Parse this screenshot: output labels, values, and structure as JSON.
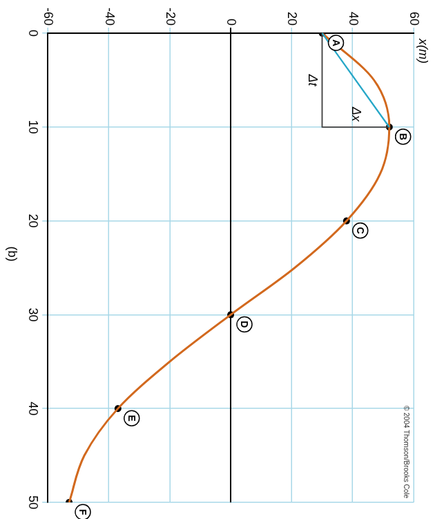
{
  "chart_data": {
    "type": "line",
    "y_label": "x(m)",
    "subtitle": "(b)",
    "x": [
      0,
      5,
      10,
      15,
      20,
      25,
      30,
      35,
      40,
      45,
      50
    ],
    "series": [
      {
        "values": [
          30,
          47,
          52,
          49,
          38,
          21,
          0,
          -20,
          -37,
          -48,
          -53
        ],
        "color": "#d2691e",
        "line_style": "solid",
        "marker": "none"
      },
      {
        "type": "scatter",
        "values": [
          30,
          null,
          52,
          null,
          38,
          null,
          0,
          null,
          -37,
          null,
          -53
        ],
        "point_labels": [
          "A",
          null,
          "B",
          null,
          "C",
          null,
          "D",
          null,
          "E",
          null,
          "F"
        ],
        "color": "#000000",
        "marker": "circle"
      }
    ],
    "xlim": [
      0,
      50
    ],
    "xticks": [
      0,
      10,
      20,
      30,
      40,
      50
    ],
    "ylim": [
      -60,
      60
    ],
    "yticks": [
      -60,
      -40,
      -20,
      0,
      20,
      40,
      60
    ],
    "grid": true,
    "annotations": [
      {
        "text": "Δt",
        "from": "A",
        "to": "B"
      },
      {
        "text": "Δx",
        "from": "A",
        "to": "B"
      },
      {
        "text": "© 2004 Thomson/Brooks Cole"
      }
    ]
  }
}
